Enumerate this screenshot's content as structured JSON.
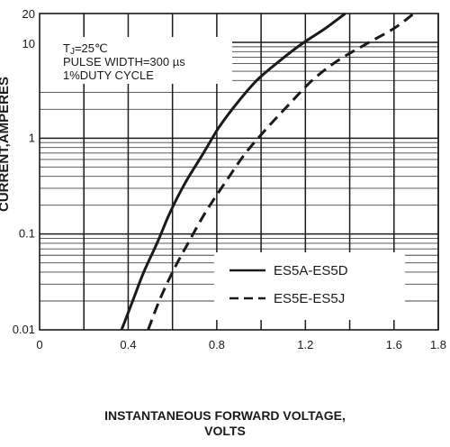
{
  "chart_data": {
    "type": "line",
    "xlabel_lines": [
      "INSTANTANEOUS FORWARD VOLTAGE,",
      "VOLTS"
    ],
    "ylabel": "CURRENT,AMPERES",
    "y_scale": "log",
    "xlim": [
      0,
      1.8
    ],
    "ylim": [
      0.01,
      20
    ],
    "x_ticks": [
      {
        "value": 0,
        "label": "0"
      },
      {
        "value": 0.4,
        "label": "0.4"
      },
      {
        "value": 0.8,
        "label": "0.8"
      },
      {
        "value": 1.2,
        "label": "1.2"
      },
      {
        "value": 1.6,
        "label": "1.6"
      },
      {
        "value": 1.8,
        "label": "1.8"
      }
    ],
    "y_ticks": [
      {
        "value": 0.01,
        "label": "0.01"
      },
      {
        "value": 0.1,
        "label": "0.1"
      },
      {
        "value": 1,
        "label": "1"
      },
      {
        "value": 10,
        "label": "10"
      },
      {
        "value": 20,
        "label": "20"
      }
    ],
    "grid": true,
    "conditions": [
      "TJ=25℃",
      "PULSE WIDTH=300 µs",
      "1%DUTY CYCLE"
    ],
    "legend_position": "bottom-right",
    "series": [
      {
        "name": "ES5A-ES5D",
        "style": "solid",
        "color": "#1a1a1a",
        "x": [
          0.37,
          0.42,
          0.47,
          0.53,
          0.59,
          0.66,
          0.74,
          0.81,
          0.89,
          0.98,
          1.08,
          1.18,
          1.29,
          1.38
        ],
        "y": [
          0.01,
          0.02,
          0.04,
          0.08,
          0.17,
          0.35,
          0.7,
          1.3,
          2.3,
          4,
          6.3,
          9.5,
          14,
          20
        ]
      },
      {
        "name": "ES5E-ES5J",
        "style": "dashed",
        "color": "#1a1a1a",
        "x": [
          0.49,
          0.54,
          0.6,
          0.67,
          0.75,
          0.84,
          0.93,
          1.03,
          1.13,
          1.23,
          1.34,
          1.47,
          1.6,
          1.69
        ],
        "y": [
          0.01,
          0.02,
          0.04,
          0.08,
          0.17,
          0.35,
          0.7,
          1.3,
          2.3,
          4,
          6.3,
          9.5,
          14,
          20
        ]
      }
    ]
  }
}
